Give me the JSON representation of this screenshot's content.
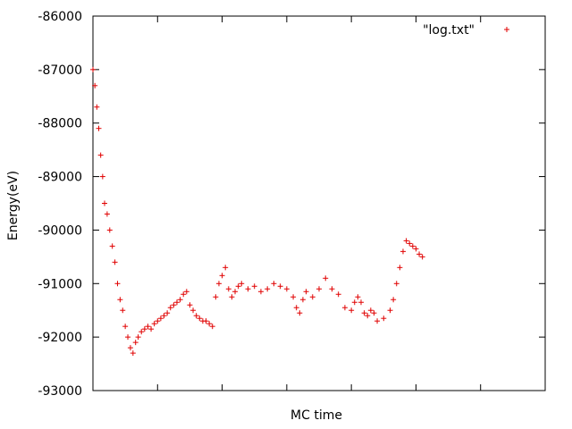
{
  "chart_data": {
    "type": "scatter",
    "title": "",
    "xlabel": "MC time",
    "ylabel": "Energy(eV)",
    "ylim": [
      -93000,
      -86000
    ],
    "xlim": [
      0,
      700
    ],
    "y_ticks": [
      -93000,
      -92000,
      -91000,
      -90000,
      -89000,
      -88000,
      -87000,
      -86000
    ],
    "y_tick_labels": [
      "-93000",
      "-92000",
      "-91000",
      "-90000",
      "-89000",
      "-88000",
      "-87000",
      "-86000"
    ],
    "x_ticks": [
      100,
      200,
      300,
      400,
      500,
      600
    ],
    "x_tick_labels_shown": false,
    "grid": false,
    "legend_position": "top-right",
    "series": [
      {
        "name": "\"log.txt\"",
        "color": "#e00000",
        "marker": "plus",
        "points": [
          [
            0,
            -87000
          ],
          [
            3,
            -87300
          ],
          [
            6,
            -87700
          ],
          [
            9,
            -88100
          ],
          [
            12,
            -88600
          ],
          [
            15,
            -89000
          ],
          [
            18,
            -89500
          ],
          [
            22,
            -89700
          ],
          [
            26,
            -90000
          ],
          [
            30,
            -90300
          ],
          [
            34,
            -90600
          ],
          [
            38,
            -91000
          ],
          [
            42,
            -91300
          ],
          [
            46,
            -91500
          ],
          [
            50,
            -91800
          ],
          [
            54,
            -92000
          ],
          [
            58,
            -92200
          ],
          [
            62,
            -92300
          ],
          [
            66,
            -92100
          ],
          [
            70,
            -92000
          ],
          [
            75,
            -91900
          ],
          [
            80,
            -91850
          ],
          [
            85,
            -91800
          ],
          [
            90,
            -91850
          ],
          [
            95,
            -91750
          ],
          [
            100,
            -91700
          ],
          [
            105,
            -91650
          ],
          [
            110,
            -91600
          ],
          [
            115,
            -91550
          ],
          [
            120,
            -91450
          ],
          [
            125,
            -91400
          ],
          [
            130,
            -91350
          ],
          [
            135,
            -91300
          ],
          [
            140,
            -91200
          ],
          [
            145,
            -91150
          ],
          [
            150,
            -91400
          ],
          [
            155,
            -91500
          ],
          [
            160,
            -91600
          ],
          [
            165,
            -91650
          ],
          [
            170,
            -91700
          ],
          [
            175,
            -91700
          ],
          [
            180,
            -91750
          ],
          [
            185,
            -91800
          ],
          [
            190,
            -91250
          ],
          [
            195,
            -91000
          ],
          [
            200,
            -90850
          ],
          [
            205,
            -90700
          ],
          [
            210,
            -91100
          ],
          [
            215,
            -91250
          ],
          [
            220,
            -91150
          ],
          [
            225,
            -91050
          ],
          [
            230,
            -91000
          ],
          [
            240,
            -91100
          ],
          [
            250,
            -91050
          ],
          [
            260,
            -91150
          ],
          [
            270,
            -91100
          ],
          [
            280,
            -91000
          ],
          [
            290,
            -91050
          ],
          [
            300,
            -91100
          ],
          [
            310,
            -91250
          ],
          [
            315,
            -91450
          ],
          [
            320,
            -91550
          ],
          [
            325,
            -91300
          ],
          [
            330,
            -91150
          ],
          [
            340,
            -91250
          ],
          [
            350,
            -91100
          ],
          [
            360,
            -90900
          ],
          [
            370,
            -91100
          ],
          [
            380,
            -91200
          ],
          [
            390,
            -91450
          ],
          [
            400,
            -91500
          ],
          [
            405,
            -91350
          ],
          [
            410,
            -91250
          ],
          [
            415,
            -91350
          ],
          [
            420,
            -91550
          ],
          [
            425,
            -91600
          ],
          [
            430,
            -91500
          ],
          [
            435,
            -91550
          ],
          [
            440,
            -91700
          ],
          [
            450,
            -91650
          ],
          [
            460,
            -91500
          ],
          [
            465,
            -91300
          ],
          [
            470,
            -91000
          ],
          [
            475,
            -90700
          ],
          [
            480,
            -90400
          ],
          [
            485,
            -90200
          ],
          [
            490,
            -90250
          ],
          [
            495,
            -90300
          ],
          [
            500,
            -90350
          ],
          [
            505,
            -90450
          ],
          [
            510,
            -90500
          ]
        ]
      }
    ]
  }
}
